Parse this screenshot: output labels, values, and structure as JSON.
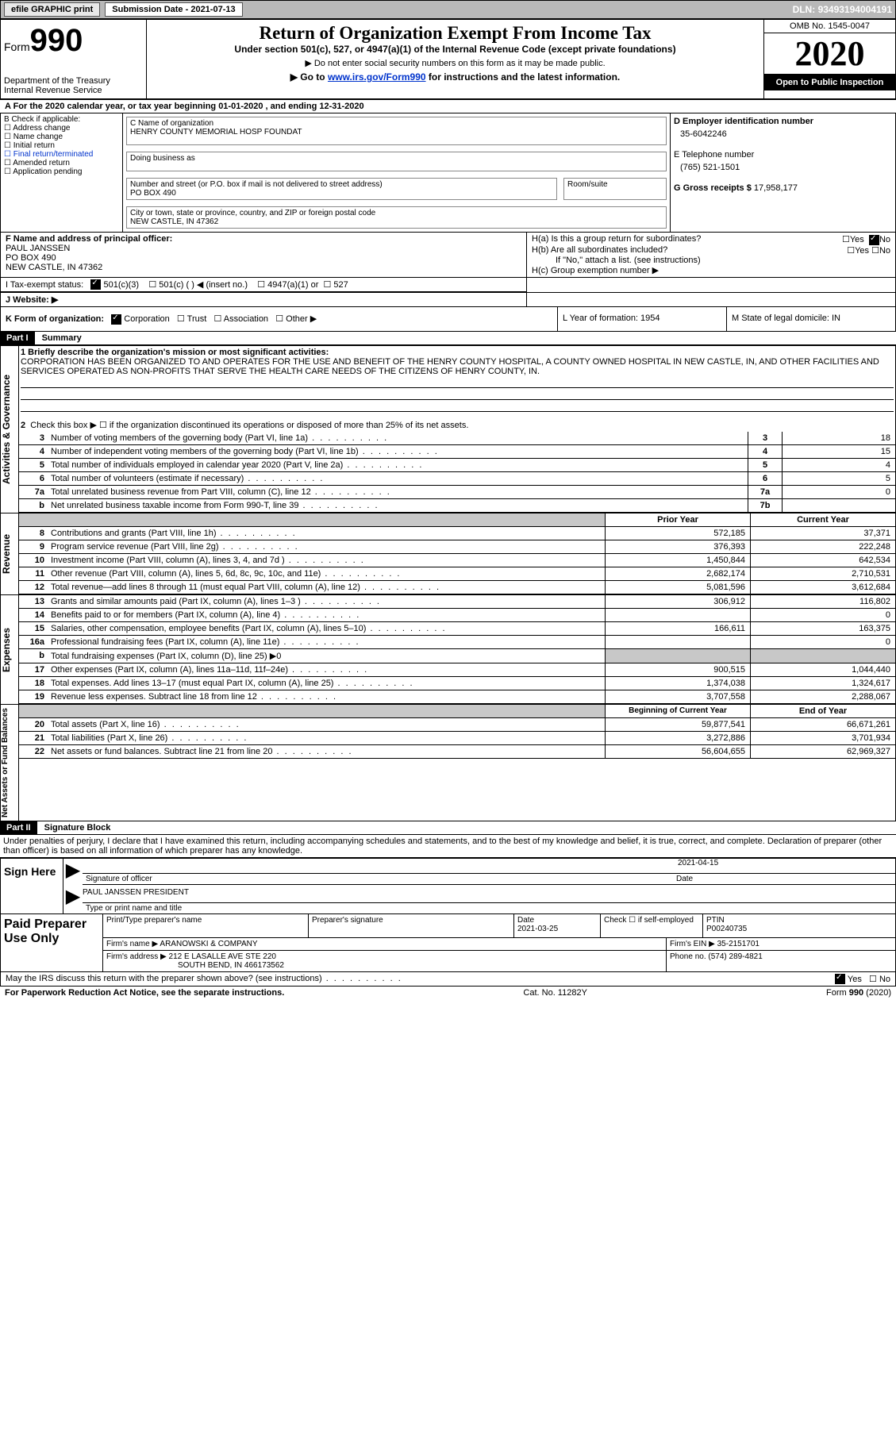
{
  "topbar": {
    "efile": "efile GRAPHIC print",
    "sub_label": "Submission Date - ",
    "sub_date": "2021-07-13",
    "dln_label": "DLN: ",
    "dln": "93493194004191"
  },
  "hdr": {
    "form": "Form",
    "form_no": "990",
    "dept": "Department of the Treasury\nInternal Revenue Service",
    "title": "Return of Organization Exempt From Income Tax",
    "sub1": "Under section 501(c), 527, or 4947(a)(1) of the Internal Revenue Code (except private foundations)",
    "sub2": "▶ Do not enter social security numbers on this form as it may be made public.",
    "sub3_pre": "▶ Go to ",
    "sub3_link": "www.irs.gov/Form990",
    "sub3_post": " for instructions and the latest information.",
    "omb": "OMB No. 1545-0047",
    "year": "2020",
    "inspect": "Open to Public Inspection"
  },
  "lineA": "A For the 2020 calendar year, or tax year beginning 01-01-2020   , and ending 12-31-2020",
  "B": {
    "hdr": "B Check if applicable:",
    "opts": [
      "Address change",
      "Name change",
      "Initial return",
      "Final return/terminated",
      "Amended return",
      "Application pending"
    ]
  },
  "C": {
    "name_lbl": "C Name of organization",
    "name": "HENRY COUNTY MEMORIAL HOSP FOUNDAT",
    "dba_lbl": "Doing business as",
    "addr_lbl": "Number and street (or P.O. box if mail is not delivered to street address)",
    "room_lbl": "Room/suite",
    "addr": "PO BOX 490",
    "city_lbl": "City or town, state or province, country, and ZIP or foreign postal code",
    "city": "NEW CASTLE, IN  47362"
  },
  "D": {
    "lbl": "D Employer identification number",
    "val": "35-6042246"
  },
  "E": {
    "lbl": "E Telephone number",
    "val": "(765) 521-1501"
  },
  "G": {
    "lbl": "G Gross receipts $ ",
    "val": "17,958,177"
  },
  "F": {
    "lbl": "F Name and address of principal officer:",
    "name": "PAUL JANSSEN",
    "addr1": "PO BOX 490",
    "addr2": "NEW CASTLE, IN  47362"
  },
  "H": {
    "a_label": "H(a)  Is this a group return for subordinates?",
    "b_label": "H(b)  Are all subordinates included?",
    "b_note": "If \"No,\" attach a list. (see instructions)",
    "c_label": "H(c)  Group exemption number ▶",
    "yes": "Yes",
    "no": "No"
  },
  "I": {
    "lbl": "I   Tax-exempt status:",
    "c3": "501(c)(3)",
    "c": "501(c) (  ) ◀ (insert no.)",
    "a1": "4947(a)(1) or",
    "s527": "527"
  },
  "J": "J   Website: ▶",
  "K": {
    "lbl": "K Form of organization:",
    "corp": "Corporation",
    "trust": "Trust",
    "assoc": "Association",
    "other": "Other ▶"
  },
  "L": "L Year of formation: 1954",
  "M": "M State of legal domicile: IN",
  "part1": {
    "hdr": "Part I",
    "title": "Summary",
    "side1": "Activities & Governance",
    "side2": "Revenue",
    "side3": "Expenses",
    "side4": "Net Assets or Fund Balances",
    "l1_lbl": "1  Briefly describe the organization's mission or most significant activities:",
    "l1_text": "CORPORATION HAS BEEN ORGANIZED TO AND OPERATES FOR THE USE AND BENEFIT OF THE HENRY COUNTY HOSPITAL, A COUNTY OWNED HOSPITAL IN NEW CASTLE, IN, AND OTHER FACILITIES AND SERVICES OPERATED AS NON-PROFITS THAT SERVE THE HEALTH CARE NEEDS OF THE CITIZENS OF HENRY COUNTY, IN.",
    "l2": "Check this box ▶ ☐  if the organization discontinued its operations or disposed of more than 25% of its net assets.",
    "rows_simple": [
      {
        "n": "3",
        "t": "Number of voting members of the governing body (Part VI, line 1a)",
        "box": "3",
        "v": "18"
      },
      {
        "n": "4",
        "t": "Number of independent voting members of the governing body (Part VI, line 1b)",
        "box": "4",
        "v": "15"
      },
      {
        "n": "5",
        "t": "Total number of individuals employed in calendar year 2020 (Part V, line 2a)",
        "box": "5",
        "v": "4"
      },
      {
        "n": "6",
        "t": "Total number of volunteers (estimate if necessary)",
        "box": "6",
        "v": "5"
      },
      {
        "n": "7a",
        "t": "Total unrelated business revenue from Part VIII, column (C), line 12",
        "box": "7a",
        "v": "0"
      },
      {
        "n": "b",
        "t": "Net unrelated business taxable income from Form 990-T, line 39",
        "box": "7b",
        "v": ""
      }
    ],
    "prior_hdr": "Prior Year",
    "curr_hdr": "Current Year",
    "rev": [
      {
        "n": "8",
        "t": "Contributions and grants (Part VIII, line 1h)",
        "p": "572,185",
        "c": "37,371"
      },
      {
        "n": "9",
        "t": "Program service revenue (Part VIII, line 2g)",
        "p": "376,393",
        "c": "222,248"
      },
      {
        "n": "10",
        "t": "Investment income (Part VIII, column (A), lines 3, 4, and 7d )",
        "p": "1,450,844",
        "c": "642,534"
      },
      {
        "n": "11",
        "t": "Other revenue (Part VIII, column (A), lines 5, 6d, 8c, 9c, 10c, and 11e)",
        "p": "2,682,174",
        "c": "2,710,531"
      },
      {
        "n": "12",
        "t": "Total revenue—add lines 8 through 11 (must equal Part VIII, column (A), line 12)",
        "p": "5,081,596",
        "c": "3,612,684"
      }
    ],
    "exp": [
      {
        "n": "13",
        "t": "Grants and similar amounts paid (Part IX, column (A), lines 1–3 )",
        "p": "306,912",
        "c": "116,802"
      },
      {
        "n": "14",
        "t": "Benefits paid to or for members (Part IX, column (A), line 4)",
        "p": "",
        "c": "0"
      },
      {
        "n": "15",
        "t": "Salaries, other compensation, employee benefits (Part IX, column (A), lines 5–10)",
        "p": "166,611",
        "c": "163,375"
      },
      {
        "n": "16a",
        "t": "Professional fundraising fees (Part IX, column (A), line 11e)",
        "p": "",
        "c": "0"
      },
      {
        "n": "b",
        "t": "Total fundraising expenses (Part IX, column (D), line 25) ▶0",
        "p": "shaded",
        "c": "shaded"
      },
      {
        "n": "17",
        "t": "Other expenses (Part IX, column (A), lines 11a–11d, 11f–24e)",
        "p": "900,515",
        "c": "1,044,440"
      },
      {
        "n": "18",
        "t": "Total expenses. Add lines 13–17 (must equal Part IX, column (A), line 25)",
        "p": "1,374,038",
        "c": "1,324,617"
      },
      {
        "n": "19",
        "t": "Revenue less expenses. Subtract line 18 from line 12",
        "p": "3,707,558",
        "c": "2,288,067"
      }
    ],
    "boy_hdr": "Beginning of Current Year",
    "eoy_hdr": "End of Year",
    "net": [
      {
        "n": "20",
        "t": "Total assets (Part X, line 16)",
        "p": "59,877,541",
        "c": "66,671,261"
      },
      {
        "n": "21",
        "t": "Total liabilities (Part X, line 26)",
        "p": "3,272,886",
        "c": "3,701,934"
      },
      {
        "n": "22",
        "t": "Net assets or fund balances. Subtract line 21 from line 20",
        "p": "56,604,655",
        "c": "62,969,327"
      }
    ]
  },
  "part2": {
    "hdr": "Part II",
    "title": "Signature Block",
    "decl": "Under penalties of perjury, I declare that I have examined this return, including accompanying schedules and statements, and to the best of my knowledge and belief, it is true, correct, and complete. Declaration of preparer (other than officer) is based on all information of which preparer has any knowledge.",
    "sign_here": "Sign Here",
    "sig_officer": "Signature of officer",
    "sig_date_lbl": "Date",
    "sig_date": "2021-04-15",
    "sig_name": "PAUL JANSSEN PRESIDENT",
    "sig_name_lbl": "Type or print name and title",
    "paid": "Paid Preparer Use Only",
    "p_name_lbl": "Print/Type preparer's name",
    "p_sig_lbl": "Preparer's signature",
    "p_date_lbl": "Date",
    "p_date": "2021-03-25",
    "p_check_lbl": "Check ☐ if self-employed",
    "p_ptin_lbl": "PTIN",
    "p_ptin": "P00240735",
    "firm_name_lbl": "Firm's name   ▶",
    "firm_name": "ARANOWSKI & COMPANY",
    "firm_ein_lbl": "Firm's EIN ▶",
    "firm_ein": "35-2151701",
    "firm_addr_lbl": "Firm's address ▶",
    "firm_addr": "212 E LASALLE AVE STE 220",
    "firm_city": "SOUTH BEND, IN  466173562",
    "firm_phone_lbl": "Phone no.",
    "firm_phone": "(574) 289-4821",
    "discuss": "May the IRS discuss this return with the preparer shown above? (see instructions)",
    "yes": "Yes",
    "no": "No"
  },
  "footer": {
    "left": "For Paperwork Reduction Act Notice, see the separate instructions.",
    "mid": "Cat. No. 11282Y",
    "right": "Form 990 (2020)"
  }
}
